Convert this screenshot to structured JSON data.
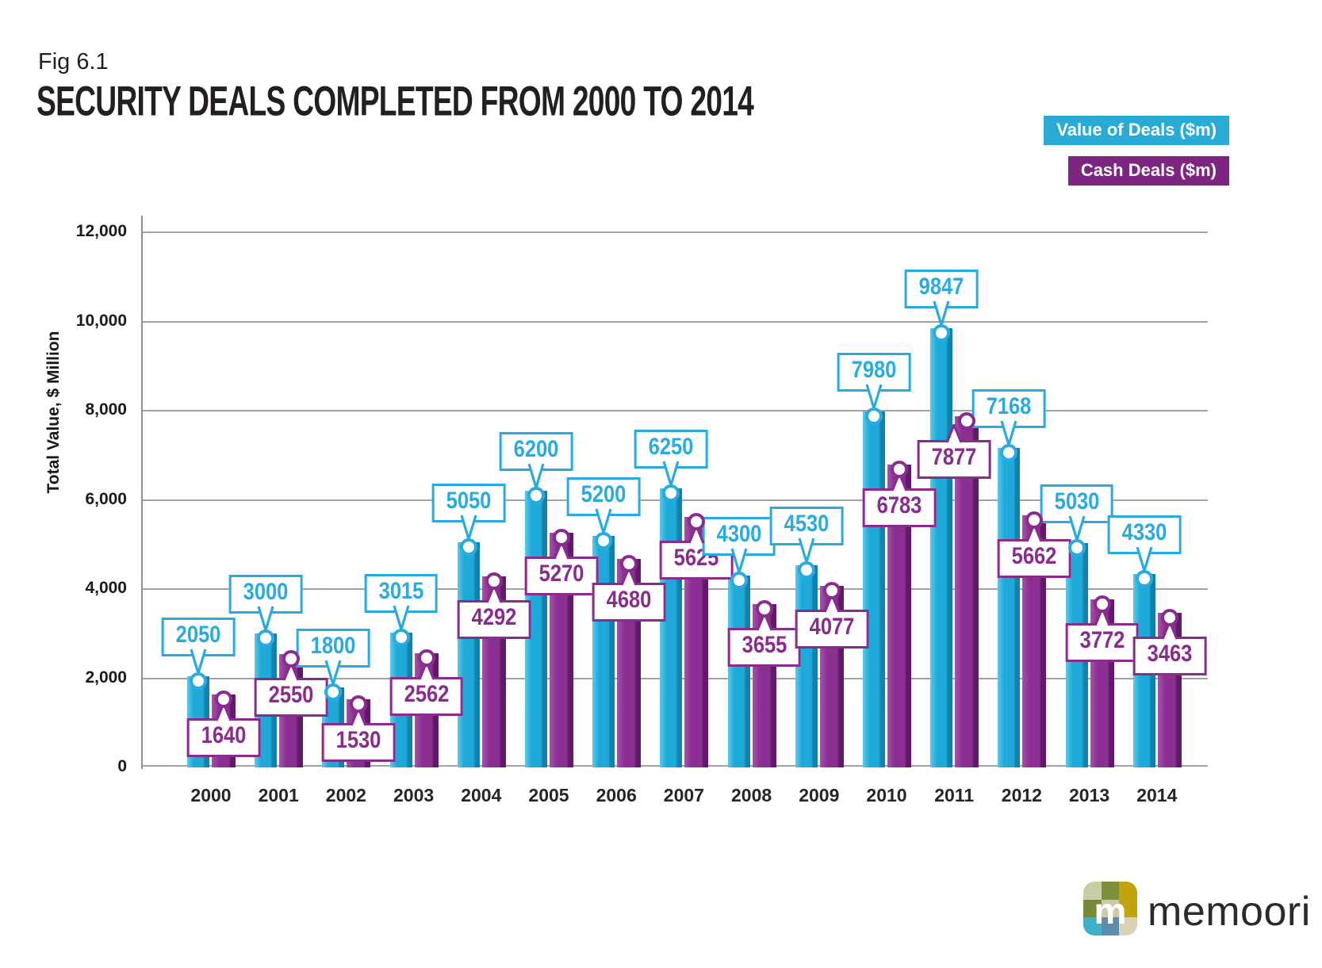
{
  "figure": {
    "label": "Fig 6.1",
    "title": "SECURITY DEALS COMPLETED FROM 2000 TO 2014"
  },
  "chart_data": {
    "type": "bar",
    "title": "SECURITY DEALS COMPLETED FROM 2000 TO 2014",
    "categories": [
      "2000",
      "2001",
      "2002",
      "2003",
      "2004",
      "2005",
      "2006",
      "2007",
      "2008",
      "2009",
      "2010",
      "2011",
      "2012",
      "2013",
      "2014"
    ],
    "series": [
      {
        "name": "Value of Deals ($m)",
        "color": "#29abe2",
        "values": [
          2050,
          3000,
          1800,
          3015,
          5050,
          6200,
          5200,
          6250,
          4300,
          4530,
          7980,
          9847,
          7168,
          5030,
          4330
        ]
      },
      {
        "name": "Cash Deals ($m)",
        "color": "#8a2b8f",
        "values": [
          1640,
          2550,
          1530,
          2562,
          4292,
          5270,
          4680,
          5625,
          3655,
          4077,
          6783,
          7877,
          5662,
          3772,
          3463
        ]
      }
    ],
    "ylabel": "Total Value, $ Million",
    "xlabel": "",
    "ylim": [
      0,
      12000
    ],
    "ytick_step": 2000,
    "ytick_labels": [
      "0",
      "2,000",
      "4,000",
      "6,000",
      "8,000",
      "10,000",
      "12,000"
    ],
    "grid": true,
    "legend_position": "top-right",
    "value_labels": true
  },
  "colors": {
    "cyan_legend": "#29abd6",
    "cyan_bar_light": "#5bc9ea",
    "cyan_bar_main": "#1ea9d8",
    "cyan_bar_dark": "#0f82ad",
    "cyan_accent": "#29abe2",
    "purple_legend": "#7d2581",
    "purple_bar_light": "#a355a8",
    "purple_bar_main": "#8c2f92",
    "purple_bar_dark": "#611a69",
    "purple_accent": "#8a2b8f",
    "gridline": "#a2a2a2"
  },
  "logo": {
    "text": "memoori",
    "icon_letter": "m",
    "tiles": [
      "#c9cea2",
      "#7e8f3b",
      "#c2a30f",
      "#76883a",
      "#cfc9a8",
      "#c2a30f",
      "#3db0c6",
      "#5e8cab",
      "#d9d2b5"
    ]
  }
}
